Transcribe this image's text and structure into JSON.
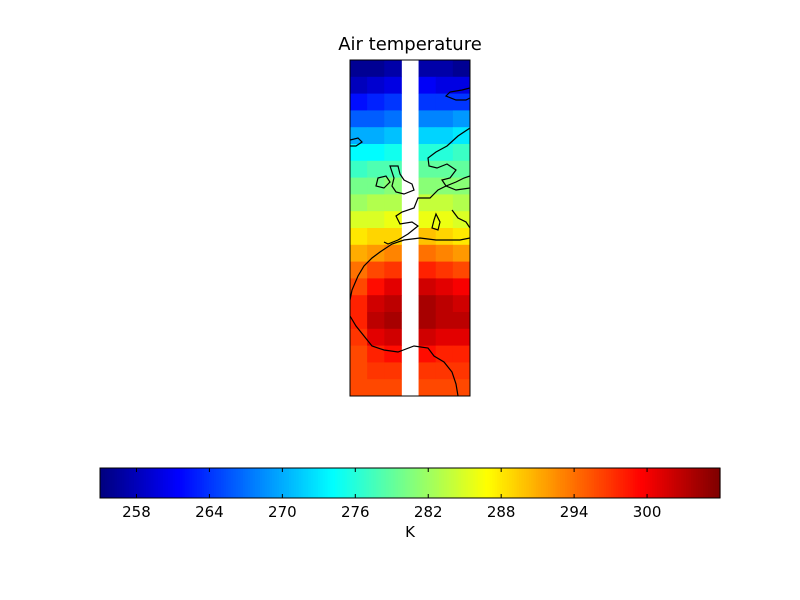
{
  "chart_data": {
    "type": "heatmap",
    "title": "Air temperature",
    "colorbar": {
      "label": "K",
      "range": [
        255,
        306
      ],
      "colormap": "jet",
      "ticks": [
        "258",
        "264",
        "270",
        "276",
        "282",
        "288",
        "294",
        "300"
      ],
      "orientation": "horizontal"
    },
    "grid": {
      "rows": 20,
      "columns": 7,
      "missing_column": 3,
      "values": [
        [
          256,
          256,
          257,
          null,
          257,
          257,
          256
        ],
        [
          258,
          259,
          260,
          null,
          261,
          260,
          260
        ],
        [
          262,
          263,
          264,
          null,
          264,
          264,
          264
        ],
        [
          266,
          266,
          267,
          null,
          268,
          268,
          269
        ],
        [
          270,
          270,
          271,
          null,
          272,
          272,
          273
        ],
        [
          274,
          274,
          275,
          null,
          276,
          276,
          277
        ],
        [
          277,
          278,
          278,
          null,
          279,
          279,
          279
        ],
        [
          280,
          280,
          281,
          null,
          281,
          281,
          281
        ],
        [
          282,
          283,
          283,
          null,
          284,
          284,
          283
        ],
        [
          285,
          285,
          286,
          null,
          286,
          286,
          285
        ],
        [
          288,
          289,
          289,
          null,
          290,
          289,
          288
        ],
        [
          291,
          292,
          293,
          null,
          294,
          293,
          292
        ],
        [
          294,
          296,
          297,
          null,
          298,
          297,
          296
        ],
        [
          296,
          299,
          301,
          null,
          302,
          301,
          300
        ],
        [
          298,
          302,
          303,
          null,
          304,
          303,
          302
        ],
        [
          298,
          303,
          304,
          null,
          304,
          303,
          303
        ],
        [
          297,
          301,
          302,
          null,
          302,
          301,
          301
        ],
        [
          296,
          298,
          299,
          null,
          299,
          298,
          298
        ],
        [
          296,
          297,
          297,
          null,
          297,
          297,
          297
        ],
        [
          296,
          296,
          296,
          null,
          296,
          296,
          296
        ]
      ]
    }
  }
}
